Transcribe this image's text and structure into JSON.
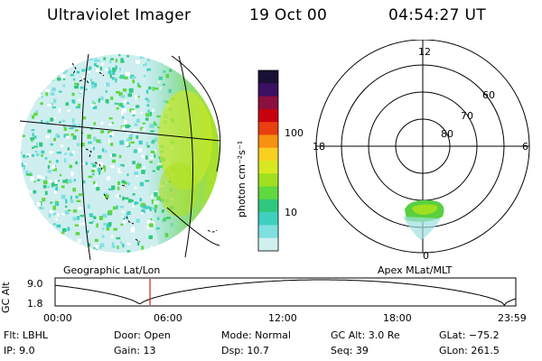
{
  "header": {
    "instrument": "Ultraviolet Imager",
    "date": "19 Oct 00",
    "time": "04:54:27 UT"
  },
  "colorbar": {
    "label": "photon cm⁻²s⁻¹",
    "ticks": [
      "100",
      "10"
    ],
    "colors": [
      "#1a1035",
      "#3a1060",
      "#8a1040",
      "#c80010",
      "#e84010",
      "#f89010",
      "#f8d020",
      "#d8e820",
      "#a0e020",
      "#60d840",
      "#30c880",
      "#40d0c0",
      "#80e0e0",
      "#d0f0f0"
    ]
  },
  "left_panel": {
    "label": "Geographic Lat/Lon"
  },
  "right_panel": {
    "label": "Apex MLat/MLT",
    "mlt_labels": {
      "top": "12",
      "left": "18",
      "right": "6",
      "bottom": "0"
    },
    "lat_labels": [
      "60",
      "70",
      "80"
    ]
  },
  "timeline": {
    "ylabel": "GC Alt",
    "yticks": [
      "9.0",
      "1.8"
    ],
    "xticks": [
      "00:00",
      "06:00",
      "12:00",
      "18:00",
      "23:59"
    ],
    "current_time_fraction": 0.206,
    "marker_color": "#d02020"
  },
  "info": {
    "row1": {
      "filter": "Flt: LBHL",
      "door": "Door: Open",
      "mode": "Mode: Normal",
      "gc_alt": "GC Alt: 3.0 Re",
      "glat": "GLat: −75.2"
    },
    "row2": {
      "ip": "IP:  9.0",
      "gain": "Gain: 13",
      "dsp": "Dsp:  10.7",
      "seq": "Seq: 39",
      "glon": "GLon: 261.5"
    }
  }
}
